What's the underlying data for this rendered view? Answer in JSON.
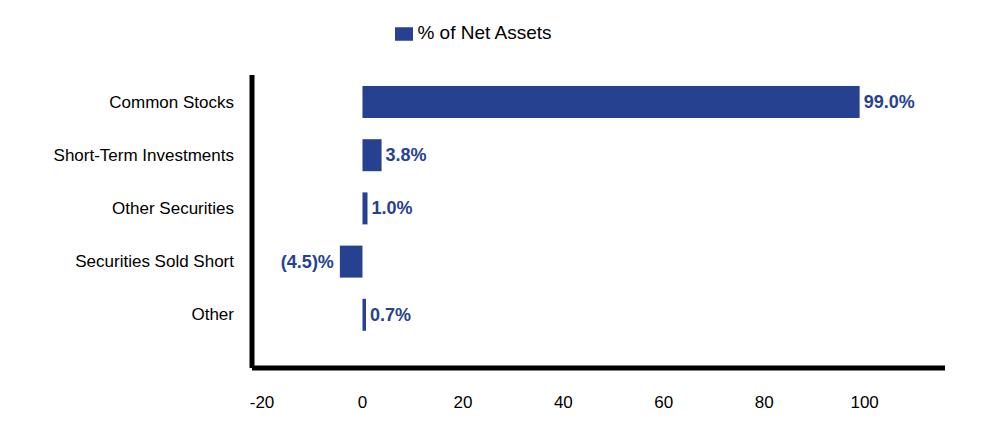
{
  "chart_data": {
    "type": "bar",
    "orientation": "horizontal",
    "categories": [
      "Common Stocks",
      "Short-Term Investments",
      "Other Securities",
      "Securities Sold Short",
      "Other"
    ],
    "series": [
      {
        "name": "% of Net Assets",
        "color": "#26418f",
        "values": [
          99.0,
          3.8,
          1.0,
          -4.5,
          0.7
        ],
        "value_labels": [
          "99.0%",
          "3.8%",
          "1.0%",
          "(4.5)%",
          "0.7%"
        ]
      }
    ],
    "xlim": [
      -22,
      116
    ],
    "xticks": [
      -20,
      0,
      20,
      40,
      60,
      80,
      100
    ],
    "grid": false,
    "legend": "top",
    "data_labels": true
  }
}
